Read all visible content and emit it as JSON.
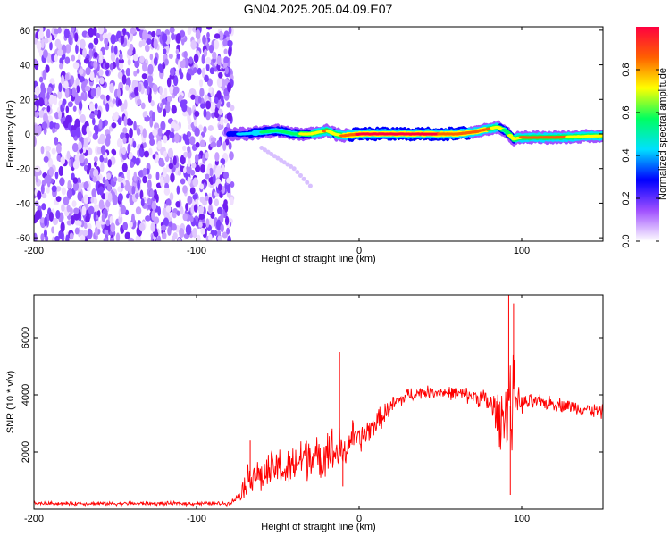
{
  "title": "GN04.2025.205.04.09.E07",
  "chart_data": [
    {
      "type": "heatmap",
      "xlabel": "Height of straight line (km)",
      "ylabel": "Frequency (Hz)",
      "xlim": [
        -200,
        150
      ],
      "ylim": [
        -62,
        62
      ],
      "x_ticks": [
        -200,
        -100,
        0,
        100
      ],
      "y_ticks": [
        60,
        40,
        20,
        0,
        -20,
        -40,
        -60
      ],
      "colorbar": {
        "label": "Normalized spectral amplitude",
        "range": [
          0,
          1
        ],
        "ticks": [
          0.0,
          0.2,
          0.4,
          0.6,
          0.8
        ],
        "colormap": [
          "#ffffff",
          "#a050ff",
          "#0000ff",
          "#00e0ff",
          "#00ff60",
          "#ffff00",
          "#ff6000",
          "#ff0040"
        ]
      },
      "noise_region_x": [
        -200,
        -78
      ],
      "ridge": {
        "x": [
          -80,
          -70,
          -60,
          -50,
          -40,
          -30,
          -20,
          -15,
          -10,
          0,
          20,
          40,
          60,
          70,
          80,
          85,
          90,
          95,
          100,
          120,
          150
        ],
        "freq_hz": [
          0,
          0,
          1,
          2,
          0,
          0,
          2,
          0,
          -1,
          0,
          0,
          0,
          0,
          1,
          3,
          4,
          2,
          -3,
          -2,
          -2,
          -1
        ],
        "amplitude": [
          0.3,
          0.4,
          0.5,
          0.6,
          0.6,
          0.7,
          0.8,
          0.7,
          0.8,
          0.95,
          0.97,
          0.95,
          0.9,
          0.85,
          0.8,
          0.75,
          0.6,
          0.7,
          0.8,
          0.8,
          0.75
        ]
      },
      "secondary_tail": {
        "x": [
          -60,
          -40,
          -30
        ],
        "freq_hz": [
          -8,
          -20,
          -30
        ]
      }
    },
    {
      "type": "line",
      "xlabel": "Height of straight line (km)",
      "ylabel": "SNR (10 * v/v)",
      "xlim": [
        -200,
        150
      ],
      "ylim": [
        0,
        7500
      ],
      "x_ticks": [
        -200,
        -100,
        0,
        100
      ],
      "y_ticks": [
        2000,
        4000,
        6000
      ],
      "color": "#ff0000",
      "series": [
        {
          "x": [
            -200,
            -150,
            -100,
            -80,
            -75,
            -70,
            -65,
            -60,
            -55,
            -50,
            -45,
            -40,
            -35,
            -30,
            -25,
            -20,
            -15,
            -12,
            -10,
            -8,
            -5,
            0,
            10,
            20,
            30,
            40,
            50,
            60,
            70,
            75,
            80,
            85,
            88,
            90,
            92,
            93,
            94,
            95,
            96,
            98,
            100,
            110,
            120,
            130,
            140,
            150
          ],
          "values": [
            200,
            200,
            200,
            200,
            400,
            900,
            1300,
            1100,
            1300,
            1500,
            1300,
            1500,
            1800,
            2000,
            1600,
            2200,
            1900,
            2100,
            1900,
            2000,
            2600,
            2400,
            3000,
            3600,
            4000,
            4100,
            4100,
            4050,
            3950,
            3900,
            3700,
            3300,
            3100,
            3600,
            3800,
            3600,
            3200,
            4200,
            4000,
            3800,
            3700,
            3750,
            3700,
            3600,
            3500,
            3400
          ],
          "spread": [
            80,
            80,
            80,
            80,
            150,
            600,
            800,
            700,
            800,
            900,
            800,
            900,
            1000,
            1100,
            900,
            1000,
            1100,
            900,
            700,
            600,
            700,
            600,
            500,
            400,
            300,
            250,
            250,
            300,
            350,
            400,
            600,
            1000,
            1300,
            1600,
            2000,
            2300,
            2000,
            1500,
            900,
            600,
            400,
            300,
            300,
            300,
            300,
            300
          ]
        }
      ],
      "spikes": [
        {
          "x": -67,
          "value": 2400
        },
        {
          "x": -12,
          "value": 5500
        },
        {
          "x": -10,
          "value": 800
        },
        {
          "x": 92,
          "value": 7500
        },
        {
          "x": 93,
          "value": 500
        },
        {
          "x": 95,
          "value": 7200
        }
      ]
    }
  ]
}
